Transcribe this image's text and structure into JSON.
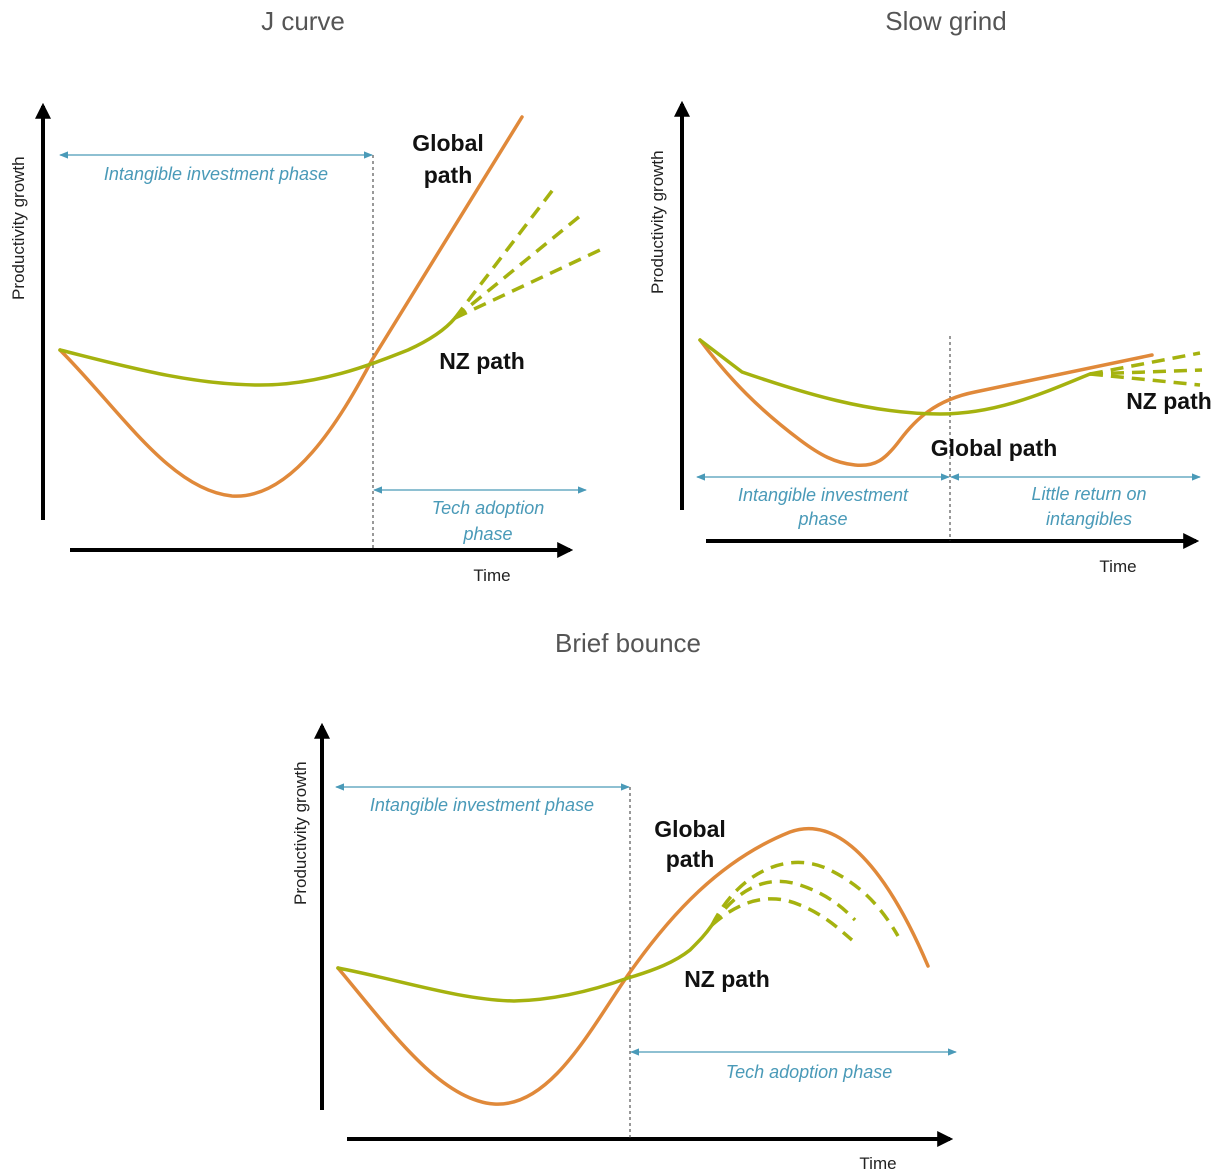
{
  "panels": {
    "j_curve": {
      "title": "J curve",
      "y_axis_label": "Productivity growth",
      "x_axis_label": "Time",
      "phase_1": "Intangible investment phase",
      "phase_2_line1": "Tech adoption",
      "phase_2_line2": "phase",
      "global_label_line1": "Global",
      "global_label_line2": "path",
      "nz_label": "NZ path"
    },
    "slow_grind": {
      "title": "Slow grind",
      "y_axis_label": "Productivity growth",
      "x_axis_label": "Time",
      "phase_1_line1": "Intangible investment",
      "phase_1_line2": "phase",
      "phase_2_line1": "Little return on",
      "phase_2_line2": "intangibles",
      "global_label": "Global path",
      "nz_label": "NZ path"
    },
    "brief_bounce": {
      "title": "Brief bounce",
      "y_axis_label": "Productivity growth",
      "x_axis_label": "Time",
      "phase_1": "Intangible investment phase",
      "phase_2": "Tech adoption phase",
      "global_label_line1": "Global",
      "global_label_line2": "path",
      "nz_label": "NZ path"
    }
  },
  "colors": {
    "global_path": "#e0893a",
    "nz_path": "#a5b20f",
    "phase_annotation": "#4a9ab8",
    "axis": "#000000"
  }
}
